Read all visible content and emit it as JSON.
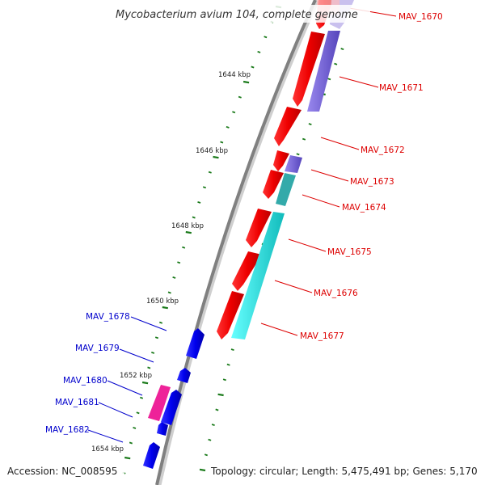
{
  "title": "Mycobacterium avium 104, complete genome",
  "accession_text": "Accession: NC_008595",
  "summary_text": "Topology: circular; Length: 5,475,491 bp; Genes: 5,170",
  "colors": {
    "backbone": "#8a8a8a",
    "forward_cds": "#ee1111",
    "forward_label": "#dd0000",
    "reverse_cds": "#1111ee",
    "reverse_label": "#0000cc",
    "purple_feature": "#7b6ad6",
    "cyan_feature": "#22dddd",
    "teal_feature": "#33aaaa",
    "magenta_feature": "#ee2299",
    "tick": "#1a7a1a"
  },
  "kbp_labels": [
    "1644 kbp",
    "1646 kbp",
    "1648 kbp",
    "1650 kbp",
    "1652 kbp",
    "1654 kbp"
  ],
  "forward_genes": [
    "MAV_1670",
    "MAV_1671",
    "MAV_1672",
    "MAV_1673",
    "MAV_1674",
    "MAV_1675",
    "MAV_1676",
    "MAV_1677"
  ],
  "reverse_genes": [
    "MAV_1678",
    "MAV_1679",
    "MAV_1680",
    "MAV_1681",
    "MAV_1682"
  ]
}
